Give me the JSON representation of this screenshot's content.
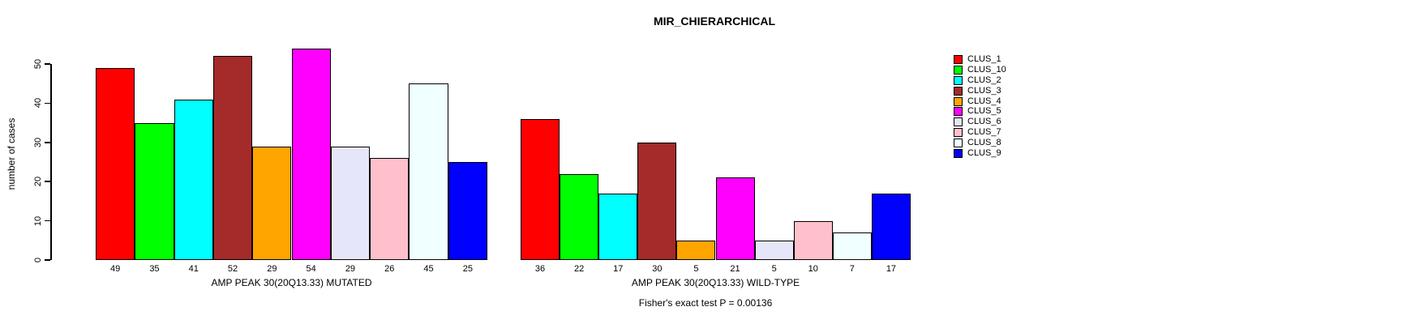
{
  "chart_data": {
    "type": "bar",
    "title": "MIR_CHIERARCHICAL",
    "ylabel": "number of cases",
    "xlabel": "",
    "ylim": [
      0,
      55
    ],
    "yticks": [
      0,
      10,
      20,
      30,
      40,
      50
    ],
    "grid": false,
    "legend_position": "right",
    "bar_value_labels_shown": true,
    "categories": [
      "AMP PEAK 30(20Q13.33) MUTATED",
      "AMP PEAK 30(20Q13.33) WILD-TYPE"
    ],
    "series": [
      {
        "name": "CLUS_1",
        "color": "#ff0000",
        "values": [
          49,
          36
        ]
      },
      {
        "name": "CLUS_10",
        "color": "#00ff00",
        "values": [
          35,
          22
        ]
      },
      {
        "name": "CLUS_2",
        "color": "#00ffff",
        "values": [
          41,
          17
        ]
      },
      {
        "name": "CLUS_3",
        "color": "#a52a2a",
        "values": [
          52,
          30
        ]
      },
      {
        "name": "CLUS_4",
        "color": "#ffa500",
        "values": [
          29,
          5
        ]
      },
      {
        "name": "CLUS_5",
        "color": "#ff00ff",
        "values": [
          54,
          21
        ]
      },
      {
        "name": "CLUS_6",
        "color": "#e6e6fa",
        "values": [
          29,
          5
        ]
      },
      {
        "name": "CLUS_7",
        "color": "#ffc0cb",
        "values": [
          26,
          10
        ]
      },
      {
        "name": "CLUS_8",
        "color": "#f0ffff",
        "values": [
          45,
          7
        ]
      },
      {
        "name": "CLUS_9",
        "color": "#0000ff",
        "values": [
          25,
          17
        ]
      }
    ],
    "footnote": "Fisher's exact test P = 0.00136"
  }
}
